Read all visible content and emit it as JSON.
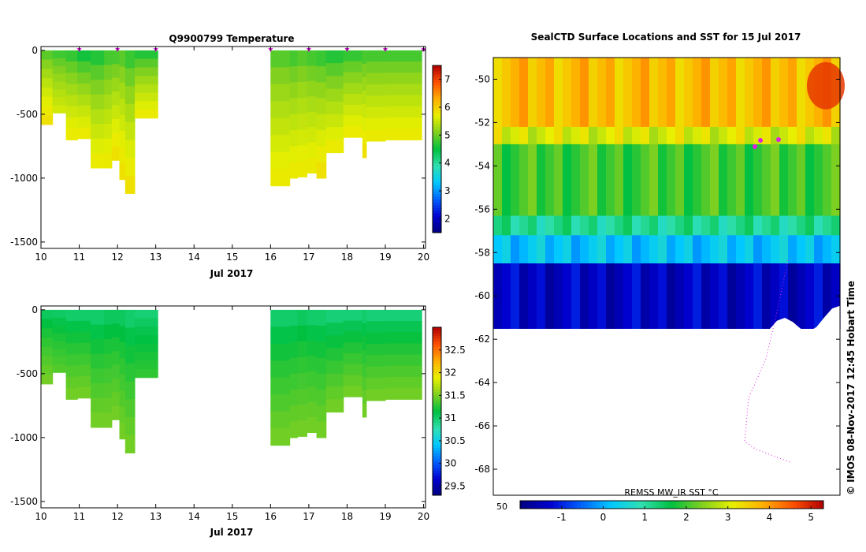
{
  "colors": {
    "marker": "#e020e0",
    "jet": [
      "#00007f",
      "#0000d0",
      "#0060ff",
      "#00c8ff",
      "#30e0b0",
      "#00c040",
      "#80d020",
      "#e8f000",
      "#ffb000",
      "#ff5000",
      "#b00000"
    ]
  },
  "chart_data": [
    {
      "id": "temperature",
      "type": "heatmap",
      "title": "Q9900799  Temperature",
      "xlabel": "Jul 2017",
      "ylabel": "",
      "x_ticks": [
        10,
        11,
        12,
        13,
        14,
        15,
        16,
        17,
        18,
        19,
        20
      ],
      "y_ticks": [
        0,
        -500,
        -1000,
        -1500
      ],
      "y_tick_labels": [
        "0",
        "-500",
        "-1000",
        "-1500"
      ],
      "xlim": [
        10,
        20.05
      ],
      "ylim": [
        -1550,
        30
      ],
      "colorbar": {
        "min": 1.5,
        "max": 7.5,
        "ticks": [
          2,
          3,
          4,
          5,
          6,
          7
        ],
        "tick_labels": [
          "2",
          "3",
          "4",
          "5",
          "6",
          "7"
        ]
      },
      "profile_markers_days": [
        11,
        12,
        13,
        16,
        17,
        18,
        19,
        20
      ],
      "profiles": [
        {
          "x0": 10.0,
          "x1": 10.3,
          "depth": -580,
          "surface": 4.7,
          "deep": 5.9
        },
        {
          "x0": 10.3,
          "x1": 10.65,
          "depth": -490,
          "surface": 4.6,
          "deep": 5.6
        },
        {
          "x0": 10.65,
          "x1": 10.95,
          "depth": -700,
          "surface": 4.5,
          "deep": 5.8
        },
        {
          "x0": 10.95,
          "x1": 11.3,
          "depth": -690,
          "surface": 4.3,
          "deep": 5.8
        },
        {
          "x0": 11.3,
          "x1": 11.65,
          "depth": -920,
          "surface": 4.4,
          "deep": 5.8
        },
        {
          "x0": 11.65,
          "x1": 11.85,
          "depth": -920,
          "surface": 4.6,
          "deep": 5.8
        },
        {
          "x0": 11.85,
          "x1": 12.05,
          "depth": -860,
          "surface": 4.6,
          "deep": 5.9
        },
        {
          "x0": 12.05,
          "x1": 12.2,
          "depth": -1010,
          "surface": 4.7,
          "deep": 5.9
        },
        {
          "x0": 12.2,
          "x1": 12.45,
          "depth": -1120,
          "surface": 4.5,
          "deep": 5.9
        },
        {
          "x0": 12.45,
          "x1": 13.05,
          "depth": -530,
          "surface": 4.4,
          "deep": 5.8
        },
        {
          "x0": 16.0,
          "x1": 16.5,
          "depth": -1060,
          "surface": 4.7,
          "deep": 5.8
        },
        {
          "x0": 16.5,
          "x1": 16.7,
          "depth": -1000,
          "surface": 4.6,
          "deep": 5.8
        },
        {
          "x0": 16.7,
          "x1": 16.95,
          "depth": -990,
          "surface": 4.7,
          "deep": 5.8
        },
        {
          "x0": 16.95,
          "x1": 17.2,
          "depth": -960,
          "surface": 4.6,
          "deep": 5.8
        },
        {
          "x0": 17.2,
          "x1": 17.45,
          "depth": -1000,
          "surface": 4.5,
          "deep": 5.9
        },
        {
          "x0": 17.45,
          "x1": 17.9,
          "depth": -800,
          "surface": 4.4,
          "deep": 5.8
        },
        {
          "x0": 17.9,
          "x1": 18.4,
          "depth": -680,
          "surface": 4.5,
          "deep": 5.8
        },
        {
          "x0": 18.4,
          "x1": 18.5,
          "depth": -840,
          "surface": 4.6,
          "deep": 5.9
        },
        {
          "x0": 18.5,
          "x1": 19.0,
          "depth": -710,
          "surface": 4.6,
          "deep": 5.8
        },
        {
          "x0": 19.0,
          "x1": 19.95,
          "depth": -700,
          "surface": 4.6,
          "deep": 5.8
        }
      ]
    },
    {
      "id": "salinity",
      "type": "heatmap",
      "title": "",
      "xlabel": "Jul 2017",
      "ylabel": "",
      "x_ticks": [
        10,
        11,
        12,
        13,
        14,
        15,
        16,
        17,
        18,
        19,
        20
      ],
      "y_ticks": [
        0,
        -500,
        -1000,
        -1500
      ],
      "y_tick_labels": [
        "0",
        "-500",
        "-1000",
        "-1500"
      ],
      "xlim": [
        10,
        20.05
      ],
      "ylim": [
        -1550,
        30
      ],
      "colorbar": {
        "min": 29.3,
        "max": 33.0,
        "ticks": [
          29.5,
          30,
          30.5,
          31,
          31.5,
          32,
          32.5
        ],
        "tick_labels": [
          "29.5",
          "30",
          "30.5",
          "31",
          "31.5",
          "32",
          "32.5"
        ]
      },
      "profiles": [
        {
          "x0": 10.0,
          "x1": 10.3,
          "depth": -580,
          "surface": 30.95,
          "deep": 31.5
        },
        {
          "x0": 10.3,
          "x1": 10.65,
          "depth": -490,
          "surface": 30.95,
          "deep": 31.4
        },
        {
          "x0": 10.65,
          "x1": 10.95,
          "depth": -700,
          "surface": 30.9,
          "deep": 31.5
        },
        {
          "x0": 10.95,
          "x1": 11.3,
          "depth": -690,
          "surface": 30.9,
          "deep": 31.5
        },
        {
          "x0": 11.3,
          "x1": 11.65,
          "depth": -920,
          "surface": 30.9,
          "deep": 31.5
        },
        {
          "x0": 11.65,
          "x1": 11.85,
          "depth": -920,
          "surface": 30.95,
          "deep": 31.5
        },
        {
          "x0": 11.85,
          "x1": 12.05,
          "depth": -860,
          "surface": 30.95,
          "deep": 31.5
        },
        {
          "x0": 12.05,
          "x1": 12.2,
          "depth": -1010,
          "surface": 30.95,
          "deep": 31.5
        },
        {
          "x0": 12.2,
          "x1": 12.45,
          "depth": -1120,
          "surface": 30.9,
          "deep": 31.5
        },
        {
          "x0": 12.45,
          "x1": 13.05,
          "depth": -530,
          "surface": 30.9,
          "deep": 31.3
        },
        {
          "x0": 16.0,
          "x1": 16.5,
          "depth": -1060,
          "surface": 30.9,
          "deep": 31.5
        },
        {
          "x0": 16.5,
          "x1": 16.7,
          "depth": -1000,
          "surface": 30.9,
          "deep": 31.5
        },
        {
          "x0": 16.7,
          "x1": 16.95,
          "depth": -990,
          "surface": 30.95,
          "deep": 31.5
        },
        {
          "x0": 16.95,
          "x1": 17.2,
          "depth": -960,
          "surface": 30.9,
          "deep": 31.5
        },
        {
          "x0": 17.2,
          "x1": 17.45,
          "depth": -1000,
          "surface": 30.9,
          "deep": 31.5
        },
        {
          "x0": 17.45,
          "x1": 17.9,
          "depth": -800,
          "surface": 30.85,
          "deep": 31.5
        },
        {
          "x0": 17.9,
          "x1": 18.4,
          "depth": -680,
          "surface": 30.85,
          "deep": 31.5
        },
        {
          "x0": 18.4,
          "x1": 18.5,
          "depth": -840,
          "surface": 30.9,
          "deep": 31.5
        },
        {
          "x0": 18.5,
          "x1": 19.0,
          "depth": -710,
          "surface": 30.85,
          "deep": 31.5
        },
        {
          "x0": 19.0,
          "x1": 19.95,
          "depth": -700,
          "surface": 30.85,
          "deep": 31.5
        }
      ]
    },
    {
      "id": "sst_map",
      "type": "heatmap",
      "title": "SealCTD Surface Locations and SST for 15 Jul 2017",
      "y_ticks": [
        -50,
        -52,
        -54,
        -56,
        -58,
        -60,
        -62,
        -64,
        -66,
        -68
      ],
      "y_tick_labels": [
        "-50",
        "-52",
        "-54",
        "-56",
        "-58",
        "-60",
        "-62",
        "-64",
        "-66",
        "-68"
      ],
      "ylim": [
        -69.2,
        -49.0
      ],
      "x_edge_label": "50",
      "colorbar": {
        "label": "REMSS MW_IR SST °C",
        "min": -2.0,
        "max": 5.3,
        "ticks": [
          -1,
          0,
          1,
          2,
          3,
          4,
          5
        ],
        "tick_labels": [
          "-1",
          "0",
          "1",
          "2",
          "3",
          "4",
          "5"
        ]
      },
      "bands": [
        {
          "lat_top": -49.0,
          "lat_bottom": -52.2,
          "sst": 3.7
        },
        {
          "lat_top": -52.2,
          "lat_bottom": -53.0,
          "sst": 3.0
        },
        {
          "lat_top": -53.0,
          "lat_bottom": -56.3,
          "sst": 2.0
        },
        {
          "lat_top": -56.3,
          "lat_bottom": -57.2,
          "sst": 1.1
        },
        {
          "lat_top": -57.2,
          "lat_bottom": -58.5,
          "sst": 0.2
        },
        {
          "lat_top": -58.5,
          "lat_bottom": -61.5,
          "sst": -1.4
        }
      ],
      "hot_spot_sst": 4.8,
      "credit": "© IMOS 08-Nov-2017 12:45 Hobart Time"
    }
  ]
}
